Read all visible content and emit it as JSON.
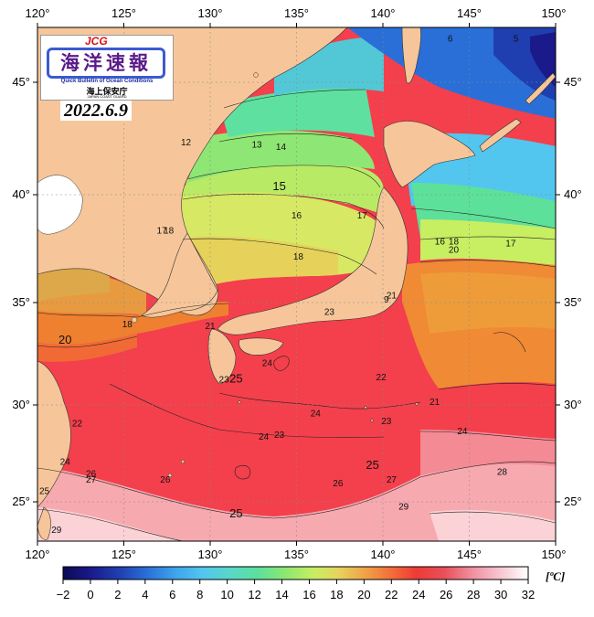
{
  "logo": {
    "badge": "JCG",
    "title": "海洋速報",
    "subtitle": "Quick Bulletin of Ocean Conditions",
    "org": "海上保安庁",
    "org_en": "JAPAN COAST GUARD"
  },
  "date": "2022.6.9",
  "unit": "[ºC]",
  "axes": {
    "lon_labels": [
      "120°",
      "125°",
      "130°",
      "135°",
      "140°",
      "145°",
      "150°"
    ],
    "lat_labels": [
      "45°",
      "40°",
      "35°",
      "30°",
      "25°"
    ]
  },
  "colorbar": {
    "min": -2,
    "max": 32,
    "tick_labels": [
      "−2",
      "0",
      "2",
      "4",
      "6",
      "8",
      "10",
      "12",
      "14",
      "16",
      "18",
      "20",
      "22",
      "24",
      "26",
      "28",
      "30",
      "32"
    ]
  },
  "contour_labels": [
    {
      "text": "6",
      "lon": 143.9,
      "lat": 46.8
    },
    {
      "text": "5",
      "lon": 147.7,
      "lat": 46.8
    },
    {
      "text": "12",
      "lon": 128.6,
      "lat": 42.2
    },
    {
      "text": "13",
      "lon": 132.7,
      "lat": 42.1
    },
    {
      "text": "14",
      "lon": 134.1,
      "lat": 42.0
    },
    {
      "text": "15",
      "lon": 134.0,
      "lat": 40.2
    },
    {
      "text": "16",
      "lon": 135.0,
      "lat": 38.9
    },
    {
      "text": "17",
      "lon": 138.8,
      "lat": 38.9
    },
    {
      "text": "17",
      "lon": 127.2,
      "lat": 38.2
    },
    {
      "text": "18",
      "lon": 127.6,
      "lat": 38.2
    },
    {
      "text": "18",
      "lon": 135.1,
      "lat": 37.0
    },
    {
      "text": "16",
      "lon": 143.3,
      "lat": 37.7
    },
    {
      "text": "18",
      "lon": 144.1,
      "lat": 37.7
    },
    {
      "text": "17",
      "lon": 147.4,
      "lat": 37.6
    },
    {
      "text": "20",
      "lon": 144.1,
      "lat": 37.3
    },
    {
      "text": "21",
      "lon": 140.5,
      "lat": 35.2
    },
    {
      "text": "9",
      "lon": 140.2,
      "lat": 35.0
    },
    {
      "text": "18",
      "lon": 125.2,
      "lat": 33.8
    },
    {
      "text": "20",
      "lon": 121.6,
      "lat": 33.0
    },
    {
      "text": "21",
      "lon": 130.0,
      "lat": 33.7
    },
    {
      "text": "23",
      "lon": 136.9,
      "lat": 34.4
    },
    {
      "text": "24",
      "lon": 133.3,
      "lat": 31.9
    },
    {
      "text": "25",
      "lon": 131.5,
      "lat": 31.1
    },
    {
      "text": "23",
      "lon": 130.8,
      "lat": 31.1
    },
    {
      "text": "22",
      "lon": 139.9,
      "lat": 31.2
    },
    {
      "text": "21",
      "lon": 143.0,
      "lat": 30.0
    },
    {
      "text": "24",
      "lon": 136.1,
      "lat": 29.4
    },
    {
      "text": "23",
      "lon": 140.2,
      "lat": 29.0
    },
    {
      "text": "24",
      "lon": 144.6,
      "lat": 28.5
    },
    {
      "text": "22",
      "lon": 122.3,
      "lat": 28.9
    },
    {
      "text": "24",
      "lon": 133.1,
      "lat": 28.2
    },
    {
      "text": "23",
      "lon": 134.0,
      "lat": 28.3
    },
    {
      "text": "24",
      "lon": 121.6,
      "lat": 26.9
    },
    {
      "text": "25",
      "lon": 139.4,
      "lat": 26.7
    },
    {
      "text": "28",
      "lon": 146.9,
      "lat": 26.4
    },
    {
      "text": "27",
      "lon": 140.5,
      "lat": 26.0
    },
    {
      "text": "26",
      "lon": 123.1,
      "lat": 26.3
    },
    {
      "text": "27",
      "lon": 123.1,
      "lat": 26.0
    },
    {
      "text": "26",
      "lon": 127.4,
      "lat": 26.0
    },
    {
      "text": "26",
      "lon": 137.4,
      "lat": 25.8
    },
    {
      "text": "25",
      "lon": 120.4,
      "lat": 25.4
    },
    {
      "text": "29",
      "lon": 141.2,
      "lat": 24.6
    },
    {
      "text": "25",
      "lon": 131.5,
      "lat": 24.2
    },
    {
      "text": "29",
      "lon": 121.1,
      "lat": 23.4
    }
  ]
}
